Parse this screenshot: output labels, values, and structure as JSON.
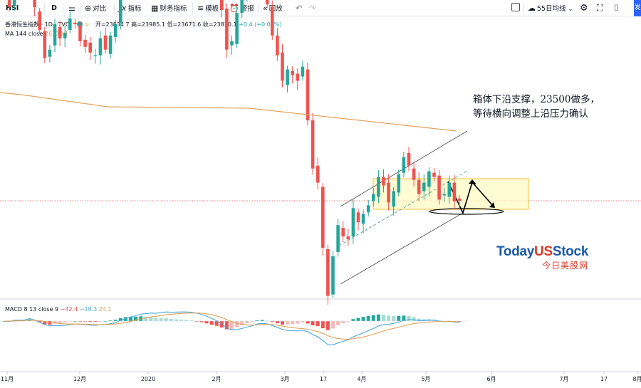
{
  "toolbar": {
    "symbol": "HSI",
    "interval": "D",
    "compare": "对比",
    "indicators": "指标",
    "financials": "财务指标",
    "templates": "模板",
    "alert": "警报",
    "replay": "回放",
    "ma_label": "55日均线",
    "edge_btn": "发",
    "colors": {
      "accent": "#2962ff"
    }
  },
  "legend": {
    "name": "香港恒生指数 · 1D · TVC",
    "open": "开=23834.7",
    "high": "高=23985.1",
    "low": "低=23671.6",
    "close": "收=23830.1",
    "change": "+0.4 (+0.00%)",
    "ma_name": "MA 144 close",
    "ma_value": "26170.1"
  },
  "macd_legend": {
    "name": "MACD 8 13 close 9",
    "v1": "−42.4",
    "v2": "−18.3",
    "v3": "24.1"
  },
  "annotation": {
    "line1": "箱体下沿支撑，23500做多，",
    "line2": "等待横向调整上沿压力确认"
  },
  "watermark": {
    "today": "Today",
    "us": "US",
    "stock": "Stock",
    "cn": "今日美股网"
  },
  "chart_data": {
    "type": "candlestick",
    "title": "香港恒生指数",
    "x_axis_labels": [
      "11月",
      "12月",
      "2020",
      "2月",
      "3月",
      "17",
      "4月",
      "5月",
      "6月",
      "7月",
      "17",
      "8月"
    ],
    "colors": {
      "up": "#26a69a",
      "down": "#ef5350",
      "ma": "#e2a15a",
      "macd": "#4aa8d8",
      "signal": "#e2a15a"
    },
    "candles_close": [
      27450,
      27250,
      27900,
      27600,
      27650,
      28200,
      27250,
      26850,
      26350,
      26500,
      26950,
      26700,
      26800,
      27050,
      26950,
      26650,
      26550,
      26450,
      26400,
      26700,
      26500,
      26750,
      26950,
      27500,
      27700,
      27800,
      27950,
      28300,
      28200,
      28350,
      28250,
      28650,
      28850,
      28700,
      28900,
      29050,
      29100,
      29150,
      28950,
      28800,
      28500,
      28150,
      27850,
      27200,
      26500,
      26650,
      27150,
      27400,
      27600,
      27650,
      27950,
      27700,
      27300,
      26750,
      26400,
      25950,
      26150,
      26050,
      25950,
      26200,
      25250,
      24400,
      24150,
      23000,
      22150,
      22850,
      23400,
      23200,
      23150,
      23700,
      23450,
      23600,
      23750,
      23950,
      24250,
      24100,
      23800,
      24000,
      24300,
      24600,
      24450,
      24200,
      23950,
      24150,
      24350,
      24250,
      23850,
      23950,
      24150,
      23820,
      23830
    ],
    "annotation_lines": [
      "箱体下沿支撑，23500做多，",
      "等待横向调整上沿压力确认"
    ]
  }
}
